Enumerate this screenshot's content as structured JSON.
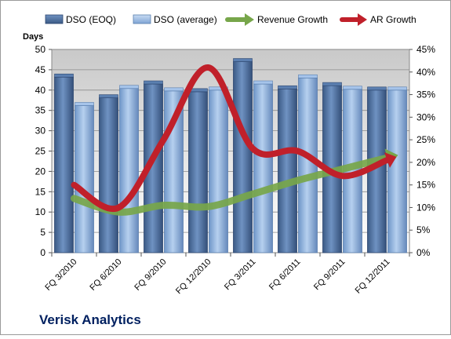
{
  "chart_data": {
    "type": "bar",
    "company": "Verisk Analytics",
    "y_left_label": "Days",
    "y_left_lim": [
      0,
      50
    ],
    "y_left_ticks": [
      "0",
      "5",
      "10",
      "15",
      "20",
      "25",
      "30",
      "35",
      "40",
      "45",
      "50"
    ],
    "y_right_lim": [
      0,
      45
    ],
    "y_right_ticks": [
      "0%",
      "5%",
      "10%",
      "15%",
      "20%",
      "25%",
      "30%",
      "35%",
      "40%",
      "45%"
    ],
    "categories": [
      "FQ 3/2010",
      "FQ 6/2010",
      "FQ 9/2010",
      "FQ 12/2010",
      "FQ 3/2011",
      "FQ 6/2011",
      "FQ 9/2011",
      "FQ 12/2011"
    ],
    "series": [
      {
        "name": "DSO (EOQ)",
        "kind": "bar",
        "axis": "left",
        "color": "#4a6d9c",
        "values": [
          43.2,
          38.1,
          41.5,
          39.6,
          47.0,
          40.3,
          41.1,
          40.0
        ]
      },
      {
        "name": "DSO (average)",
        "kind": "bar",
        "axis": "left",
        "color": "#8eb4e3",
        "values": [
          36.2,
          40.4,
          39.8,
          40.0,
          41.5,
          43.0,
          40.2,
          40.0
        ]
      },
      {
        "name": "Revenue Growth",
        "kind": "arrow-line",
        "axis": "right",
        "color": "#77a64a",
        "values": [
          12.0,
          9.0,
          10.5,
          10.2,
          13.0,
          16.0,
          18.5,
          21.0
        ]
      },
      {
        "name": "AR Growth",
        "kind": "arrow-line",
        "axis": "right",
        "color": "#c0202a",
        "values": [
          15.0,
          10.0,
          25.0,
          41.0,
          23.0,
          22.5,
          17.0,
          20.5
        ]
      }
    ],
    "grid": true,
    "legend_position": "top"
  }
}
